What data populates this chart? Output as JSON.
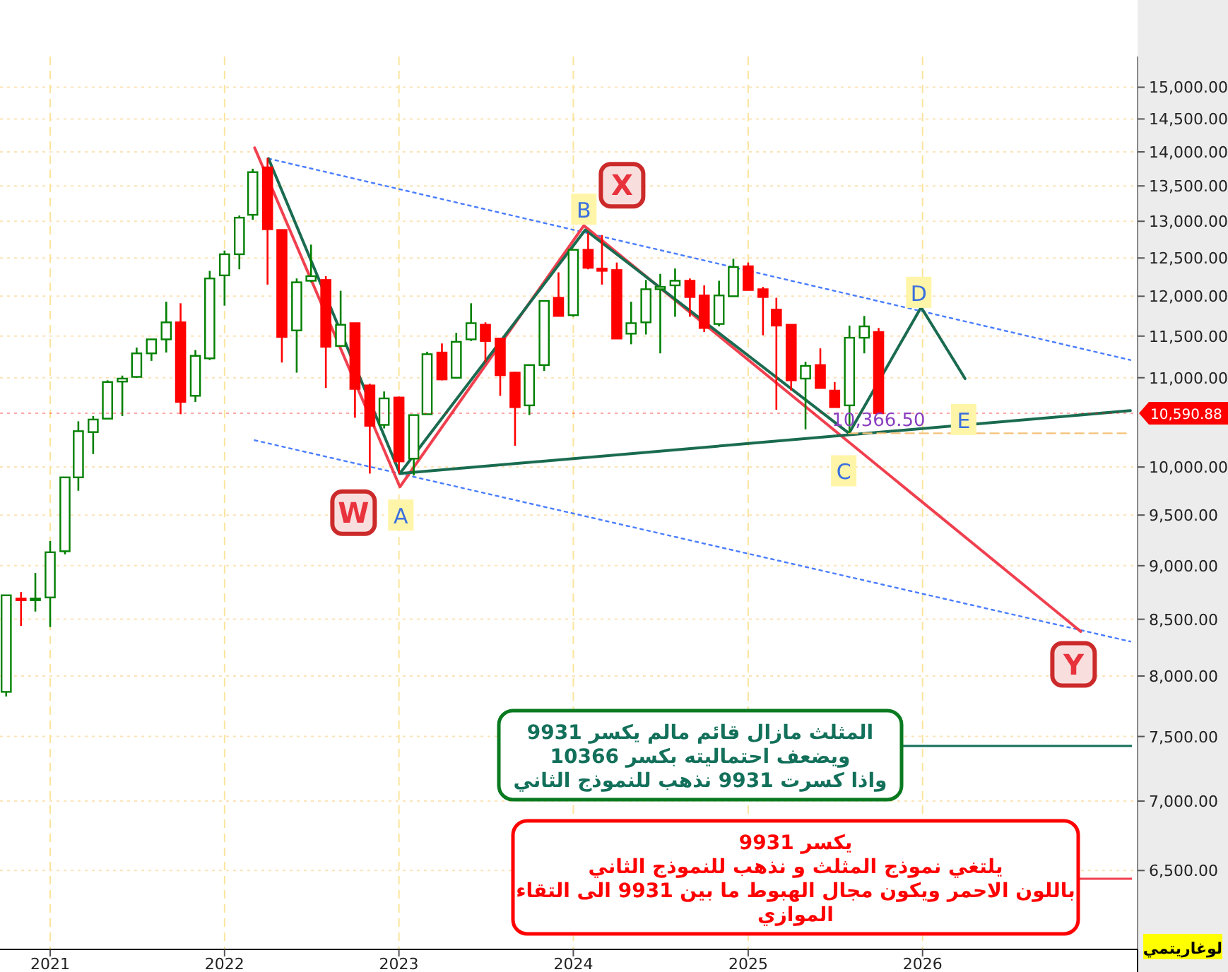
{
  "chart_data": {
    "type": "candlestick",
    "log": true,
    "grid": true,
    "xlim": [
      "2020-09-18",
      "2027-03-27"
    ],
    "ylim": [
      5975,
      15500
    ],
    "xticks": [
      "2021",
      "2022",
      "2023",
      "2024",
      "2025",
      "2026"
    ],
    "yticks": [
      {
        "value": 6500,
        "label": "6,500.00"
      },
      {
        "value": 7000,
        "label": "7,000.00"
      },
      {
        "value": 7500,
        "label": "7,500.00"
      },
      {
        "value": 8000,
        "label": "8,000.00"
      },
      {
        "value": 8500,
        "label": "8,500.00"
      },
      {
        "value": 9000,
        "label": "9,000.00"
      },
      {
        "value": 9500,
        "label": "9,500.00"
      },
      {
        "value": 10000,
        "label": "10,000.00"
      },
      {
        "value": 11000,
        "label": "11,000.00"
      },
      {
        "value": 11500,
        "label": "11,500.00"
      },
      {
        "value": 12000,
        "label": "12,000.00"
      },
      {
        "value": 12500,
        "label": "12,500.00"
      },
      {
        "value": 13000,
        "label": "13,000.00"
      },
      {
        "value": 13500,
        "label": "13,500.00"
      },
      {
        "value": 14000,
        "label": "14,000.00"
      },
      {
        "value": 14500,
        "label": "14,500.00"
      },
      {
        "value": 15000,
        "label": "15,000.00"
      }
    ],
    "x": [
      "2020-10",
      "2020-11",
      "2020-12",
      "2021-01",
      "2021-02",
      "2021-03",
      "2021-04",
      "2021-05",
      "2021-06",
      "2021-07",
      "2021-08",
      "2021-09",
      "2021-10",
      "2021-11",
      "2021-12",
      "2022-01",
      "2022-02",
      "2022-03",
      "2022-04",
      "2022-05",
      "2022-06",
      "2022-07",
      "2022-08",
      "2022-09",
      "2022-10",
      "2022-11",
      "2022-12",
      "2023-01",
      "2023-02",
      "2023-03",
      "2023-04",
      "2023-05",
      "2023-06",
      "2023-07",
      "2023-08",
      "2023-09",
      "2023-10",
      "2023-11",
      "2023-12",
      "2024-01",
      "2024-02",
      "2024-03",
      "2024-04",
      "2024-05",
      "2024-06",
      "2024-07",
      "2024-08",
      "2024-09",
      "2024-10",
      "2024-11",
      "2024-12",
      "2025-01",
      "2025-02",
      "2025-03",
      "2025-04",
      "2025-05",
      "2025-06",
      "2025-07",
      "2025-08",
      "2025-09",
      "2025-10"
    ],
    "ohlc": [
      [
        7866,
        8720,
        7827,
        8720
      ],
      [
        8690,
        8750,
        8440,
        8680
      ],
      [
        8680,
        8930,
        8570,
        8690
      ],
      [
        8700,
        9240,
        8430,
        9130
      ],
      [
        9140,
        9890,
        9110,
        9890
      ],
      [
        9890,
        10500,
        9750,
        10390
      ],
      [
        10380,
        10560,
        10140,
        10520
      ],
      [
        10530,
        10970,
        10530,
        10950
      ],
      [
        10955,
        11025,
        10560,
        10990
      ],
      [
        11010,
        11360,
        11000,
        11290
      ],
      [
        11290,
        11460,
        11200,
        11460
      ],
      [
        11460,
        11930,
        11300,
        11670
      ],
      [
        11670,
        11910,
        10580,
        10720
      ],
      [
        10790,
        11330,
        10720,
        11260
      ],
      [
        11230,
        12330,
        11210,
        12230
      ],
      [
        12270,
        12600,
        11880,
        12550
      ],
      [
        12550,
        13080,
        12350,
        13050
      ],
      [
        13090,
        13750,
        13020,
        13700
      ],
      [
        13770,
        13910,
        12150,
        12890
      ],
      [
        12880,
        12880,
        11180,
        11490
      ],
      [
        11570,
        12230,
        11060,
        12180
      ],
      [
        12200,
        12680,
        12180,
        12260
      ],
      [
        12210,
        12260,
        10880,
        11370
      ],
      [
        11380,
        12070,
        11380,
        11640
      ],
      [
        11660,
        11660,
        10540,
        10870
      ],
      [
        10910,
        10930,
        9930,
        10450
      ],
      [
        10460,
        10840,
        10420,
        10760
      ],
      [
        10770,
        10780,
        9930,
        10060
      ],
      [
        10090,
        10570,
        9910,
        10570
      ],
      [
        10580,
        11310,
        10580,
        11280
      ],
      [
        11300,
        11410,
        10970,
        10980
      ],
      [
        11000,
        11540,
        10990,
        11430
      ],
      [
        11460,
        11910,
        11440,
        11660
      ],
      [
        11640,
        11670,
        11180,
        11440
      ],
      [
        11470,
        11470,
        10790,
        11030
      ],
      [
        11060,
        11070,
        10230,
        10660
      ],
      [
        10680,
        11150,
        10570,
        11150
      ],
      [
        11150,
        11940,
        11080,
        11940
      ],
      [
        11980,
        12310,
        11750,
        11750
      ],
      [
        11760,
        12610,
        11740,
        12610
      ],
      [
        12610,
        12840,
        12350,
        12370
      ],
      [
        12360,
        12810,
        12150,
        12330
      ],
      [
        12340,
        12440,
        11470,
        11470
      ],
      [
        11530,
        11930,
        11400,
        11660
      ],
      [
        11670,
        12210,
        11520,
        12090
      ],
      [
        12090,
        12290,
        11290,
        12120
      ],
      [
        12140,
        12360,
        11740,
        12200
      ],
      [
        12200,
        12230,
        11740,
        11990
      ],
      [
        12010,
        12140,
        11550,
        11600
      ],
      [
        11650,
        12200,
        11620,
        12010
      ],
      [
        12000,
        12490,
        12000,
        12380
      ],
      [
        12390,
        12440,
        12080,
        12080
      ],
      [
        12090,
        12120,
        11510,
        11990
      ],
      [
        11830,
        11980,
        10630,
        11630
      ],
      [
        11640,
        11640,
        10850,
        10970
      ],
      [
        10990,
        11190,
        10410,
        11140
      ],
      [
        11150,
        11350,
        10880,
        10880
      ],
      [
        10850,
        10950,
        10660,
        10660
      ],
      [
        10680,
        11630,
        10370,
        11480
      ],
      [
        11480,
        11750,
        11290,
        11620
      ],
      [
        11550,
        11600,
        10590.88,
        10590.88
      ]
    ],
    "series": [
      {
        "type": "line",
        "color": "#4a7dff",
        "line_style": "dotted",
        "x": [
          "2022-04-03",
          "2027-03-12"
        ],
        "values": [
          13900,
          11210
        ]
      },
      {
        "type": "line",
        "color": "#4a7dff",
        "line_style": "dotted",
        "x": [
          "2022-03-05",
          "2027-03-12"
        ],
        "values": [
          10290,
          8300
        ]
      },
      {
        "type": "line",
        "color": "#f0404f",
        "line_style": "solid",
        "x": [
          "2022-03-05",
          "2023-01-03",
          "2024-01-23",
          "2026-11-28"
        ],
        "values": [
          14060,
          9790,
          12940,
          8390
        ]
      },
      {
        "type": "line",
        "color": "#1a6b50",
        "line_style": "solid",
        "x": [
          "2022-04-03",
          "2023-01-03",
          "2024-01-26",
          "2025-07-31",
          "2025-12-29",
          "2026-03-31"
        ],
        "values": [
          13900,
          9931,
          12880,
          10366.5,
          11860,
          10990
        ]
      },
      {
        "type": "line",
        "color": "#1a6b50",
        "line_style": "solid",
        "x": [
          "2023-01-03",
          "2027-03-12"
        ],
        "values": [
          9931,
          10620
        ]
      },
      {
        "type": "line",
        "color": "#f5c27a",
        "line_style": "dashed",
        "x": [
          "2025-07-31",
          "2027-03-12"
        ],
        "values": [
          10366.5,
          10366.5
        ]
      }
    ],
    "ref_lines": [
      {
        "axis": "y",
        "value": 10590.88,
        "label": "10,590.88",
        "color": "#ff0000"
      }
    ],
    "annotations": [
      {
        "text": "W",
        "x": "2022-09-28",
        "y": 9525
      },
      {
        "text": "X",
        "x": "2024-04-12",
        "y": 13510
      },
      {
        "text": "Y",
        "x": "2026-11-13",
        "y": 8100
      },
      {
        "text": "A",
        "x": "2023-01-05",
        "y": 9500
      },
      {
        "text": "B",
        "x": "2024-01-23",
        "y": 13170
      },
      {
        "text": "C",
        "x": "2025-07-20",
        "y": 9960
      },
      {
        "text": "D",
        "x": "2025-12-24",
        "y": 12050
      },
      {
        "text": "E",
        "x": "2026-03-28",
        "y": 10520
      },
      {
        "text": "10,366.50",
        "x": "2025-10-01",
        "y": 10445
      },
      "المثلث مازال قائم مالم يكسر 9931\nويضعف احتماليته  بكسر 10366\nواذا كسرت 9931 نذهب للنموذج الثاني",
      "يكسر 9931\nيلتغي نموذج المثلث و نذهب للنموذج الثاني\nباللون الاحمر ويكون مجال الهبوط  ما بين 9931 الى التقاء\nالموازي",
      "لوغاريتمي"
    ]
  }
}
